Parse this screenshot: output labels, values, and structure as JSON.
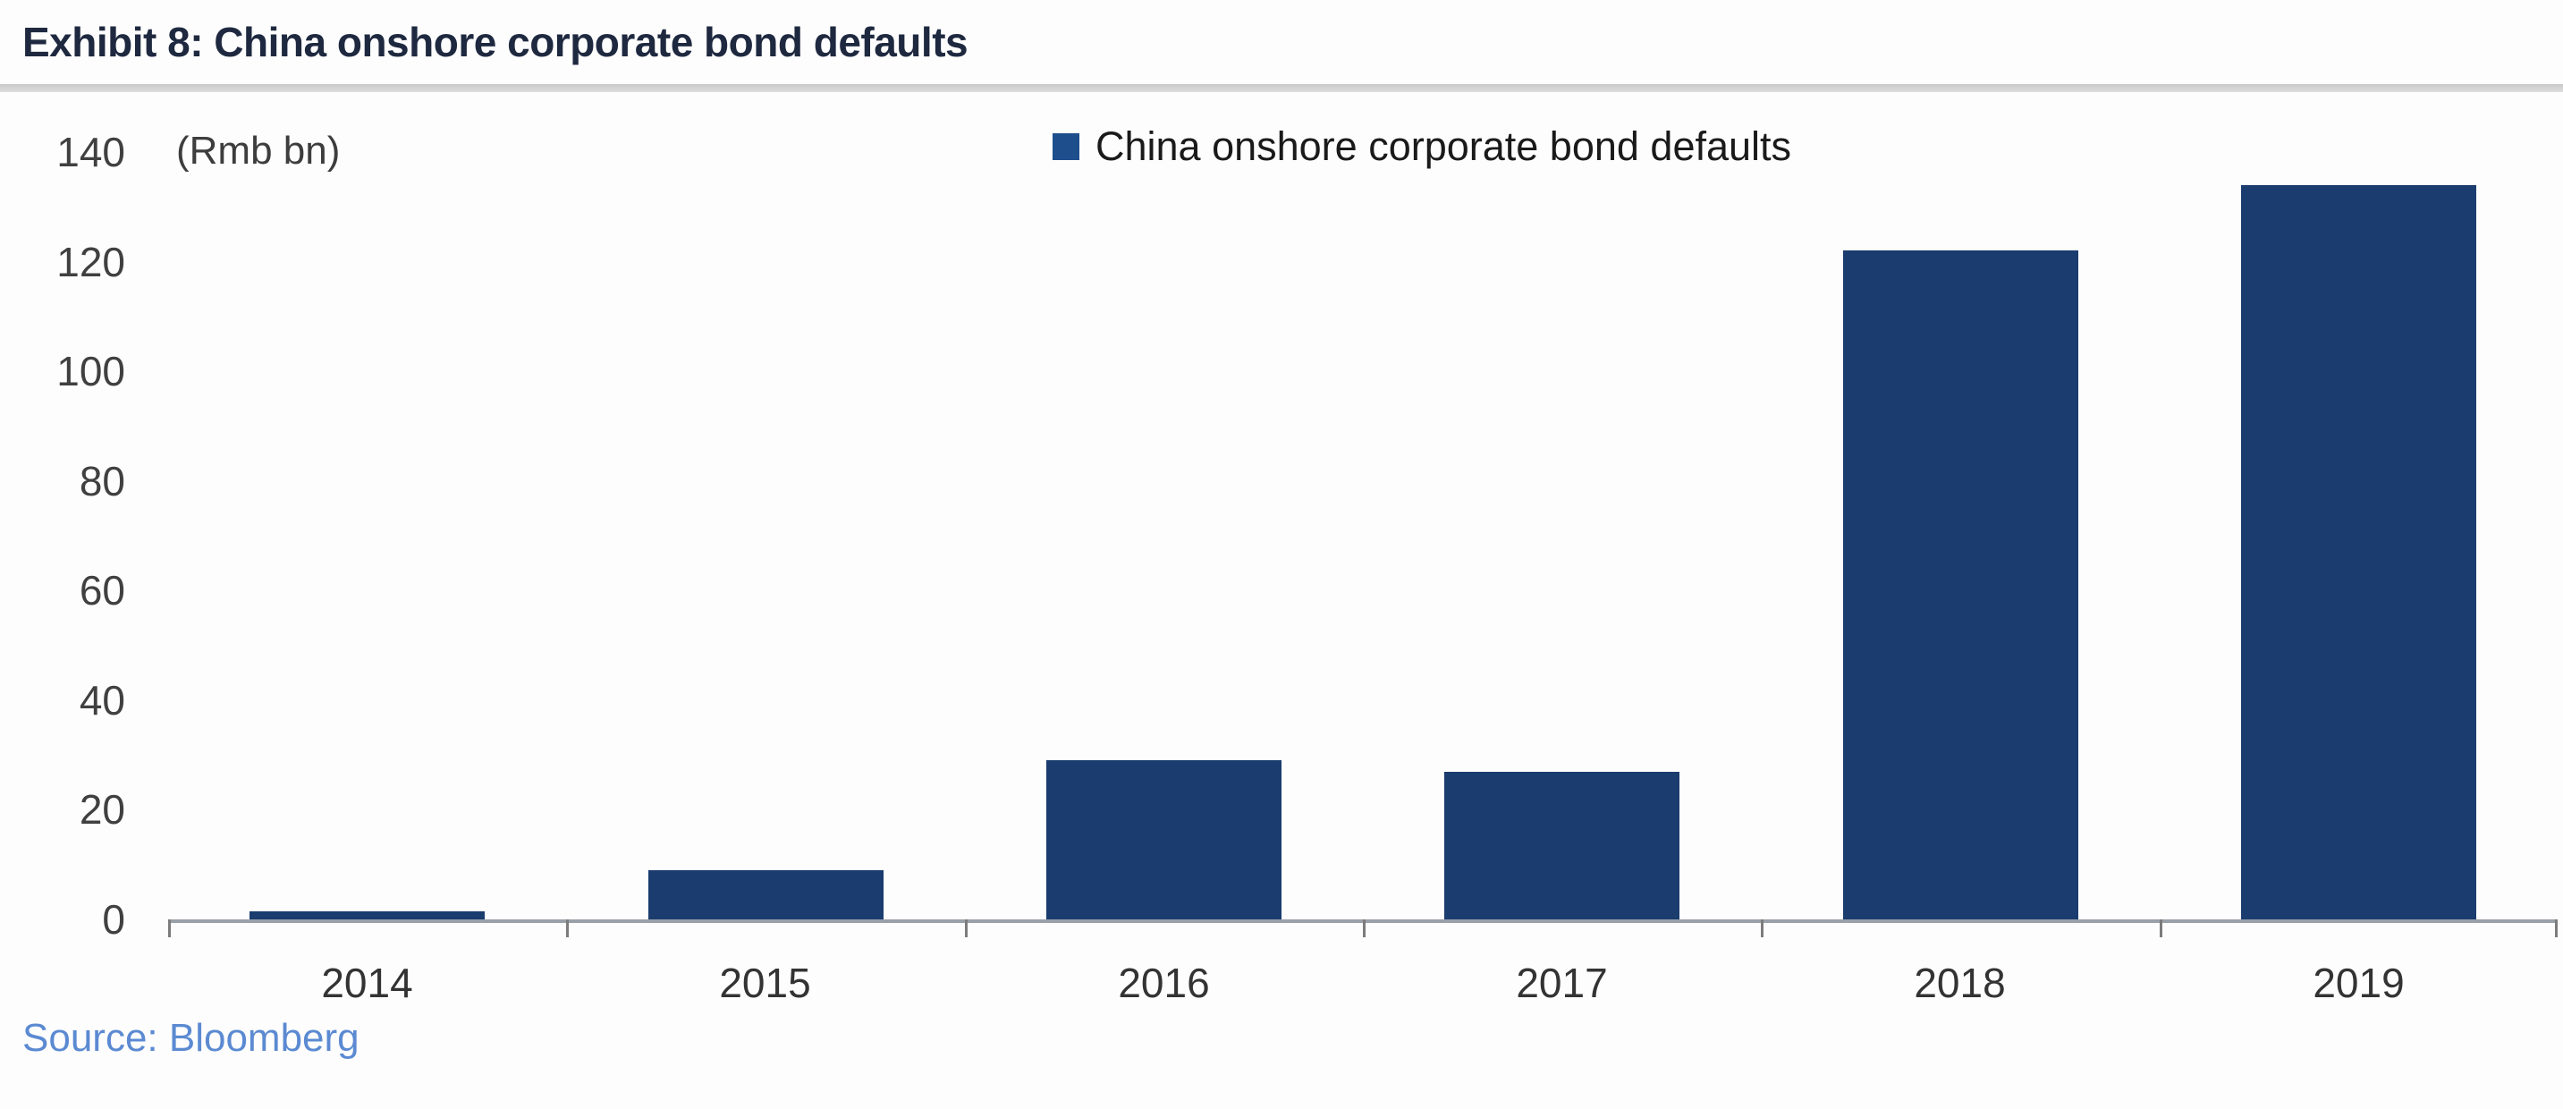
{
  "header": {
    "title": "Exhibit 8: China onshore corporate bond defaults"
  },
  "chart_data": {
    "type": "bar",
    "title": "Exhibit 8: China onshore corporate bond defaults",
    "unit_label": "(Rmb bn)",
    "legend": [
      {
        "label": "China onshore corporate bond defaults"
      }
    ],
    "legend_position": "top-center",
    "categories": [
      "2014",
      "2015",
      "2016",
      "2017",
      "2018",
      "2019"
    ],
    "values": [
      1.5,
      9,
      29,
      27,
      122,
      134
    ],
    "xlabel": "",
    "ylabel": "(Rmb bn)",
    "ylim": [
      0,
      140
    ],
    "yticks": [
      0,
      20,
      40,
      60,
      80,
      100,
      120,
      140
    ],
    "grid": false
  },
  "footer": {
    "source_label": "Source: Bloomberg"
  },
  "colors": {
    "bar": "#1a3c6e",
    "legend_swatch": "#1e4e8c",
    "title_text": "#1e2940",
    "source_text": "#5b8ad2",
    "axis_line": "#9aa0a8",
    "tick_mark": "#7c7c7c",
    "divider": "#d4d4d4",
    "axis_label_text": "#404040"
  }
}
